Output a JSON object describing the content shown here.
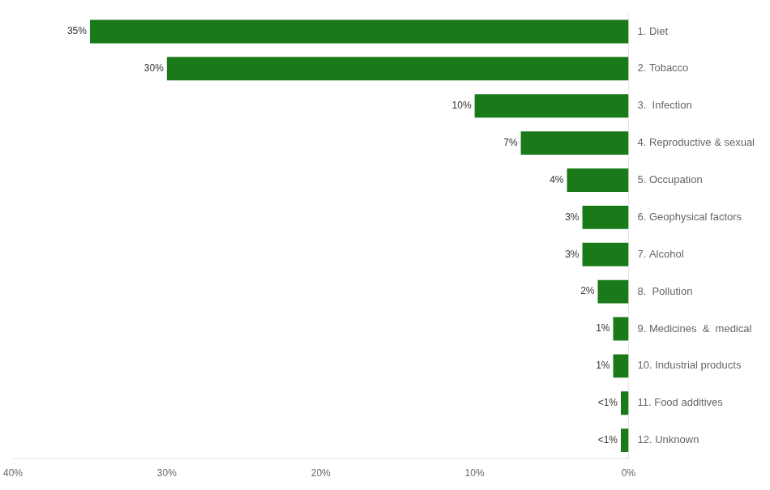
{
  "chart_data": {
    "type": "bar",
    "orientation": "horizontal",
    "categories": [
      "1. Diet",
      "2. Tobacco",
      "3.  Infection",
      "4. Reproductive & sexual",
      "5. Occupation",
      "6. Geophysical factors",
      "7. Alcohol",
      "8.  Pollution",
      "9. Medicines  &  medical",
      "10. Industrial products",
      "11. Food additives",
      "12. Unknown"
    ],
    "values": [
      35,
      30,
      10,
      7,
      4,
      3,
      3,
      2,
      1,
      1,
      0.5,
      0.5
    ],
    "value_labels": [
      "35%",
      "30%",
      "10%",
      "7%",
      "4%",
      "3%",
      "3%",
      "2%",
      "1%",
      "1%",
      "<1%",
      "<1%"
    ],
    "data_labels": true,
    "color": "#1a7a1a",
    "xlim": [
      40,
      0
    ],
    "xticks": [
      {
        "value": 0,
        "label": "0%"
      },
      {
        "value": 10,
        "label": "10%"
      },
      {
        "value": 20,
        "label": "20%"
      },
      {
        "value": 30,
        "label": "30%"
      },
      {
        "value": 40,
        "label": "40%"
      }
    ],
    "grid": false
  }
}
